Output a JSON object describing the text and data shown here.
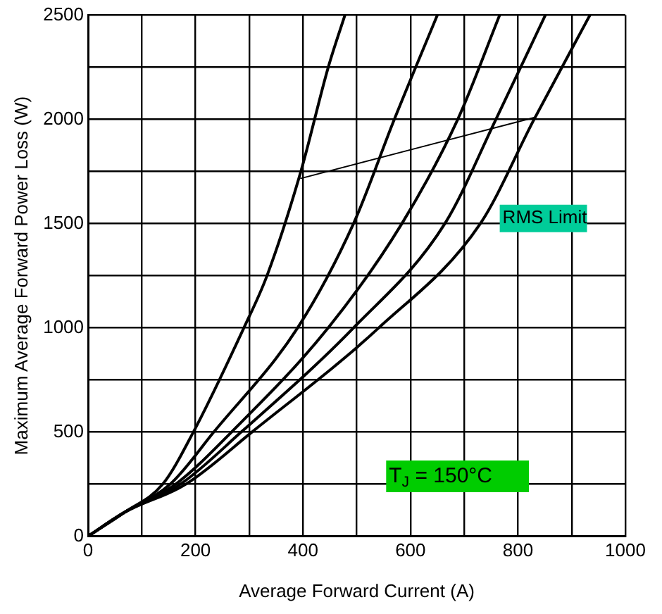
{
  "chart_data": {
    "type": "line",
    "xlabel": "Average Forward Current (A)",
    "ylabel": "Maximum Average Forward Power Loss (W)",
    "xlim": [
      0,
      1000
    ],
    "ylim": [
      0,
      2500
    ],
    "xticks": [
      0,
      {
        "value": 100,
        "label": null
      },
      200,
      {
        "value": 300,
        "label": null
      },
      400,
      {
        "value": 500,
        "label": null
      },
      600,
      {
        "value": 700,
        "label": null
      },
      800,
      {
        "value": 900,
        "label": null
      },
      1000
    ],
    "yticks": [
      0,
      {
        "value": 250,
        "label": null
      },
      500,
      {
        "value": 750,
        "label": null
      },
      1000,
      {
        "value": 1250,
        "label": null
      },
      1500,
      {
        "value": 1750,
        "label": null
      },
      2000,
      {
        "value": 2250,
        "label": null
      },
      2500
    ],
    "grid": true,
    "legend": false,
    "marker": "none",
    "line_style": "solid",
    "series": [
      {
        "color": "#000000",
        "x": [
          0,
          68,
          139,
          196,
          290,
          333,
          396,
          447,
          478
        ],
        "values": [
          0,
          115,
          250,
          500,
          1000,
          1250,
          1750,
          2250,
          2500
        ]
      },
      {
        "color": "#000000",
        "x": [
          0,
          68,
          153,
          234,
          390,
          494,
          570,
          650
        ],
        "values": [
          0,
          115,
          250,
          500,
          1000,
          1500,
          2000,
          2500
        ]
      },
      {
        "color": "#000000",
        "x": [
          0,
          68,
          163,
          267,
          447,
          584,
          688,
          766
        ],
        "values": [
          0,
          115,
          250,
          500,
          1000,
          1500,
          2000,
          2500
        ]
      },
      {
        "color": "#000000",
        "x": [
          0,
          68,
          172,
          285,
          494,
          664,
          759,
          851
        ],
        "values": [
          0,
          115,
          250,
          500,
          1000,
          1500,
          2000,
          2500
        ]
      },
      {
        "color": "#000000",
        "x": [
          0,
          68,
          182,
          305,
          541,
          730,
          830,
          934
        ],
        "values": [
          0,
          115,
          250,
          500,
          1000,
          1500,
          2000,
          2500
        ]
      },
      {
        "color": "#000000",
        "x": [
          396,
          830
        ],
        "values": [
          1717,
          2009
        ]
      }
    ],
    "annotations": [
      "RMS Limit",
      "T$_{J}$ = 150°C"
    ]
  }
}
